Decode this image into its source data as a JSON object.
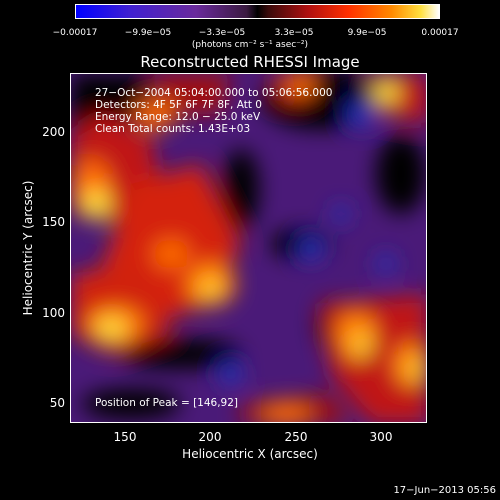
{
  "colorbar": {
    "ticks": [
      "−0.00017",
      "−9.9e−05",
      "−3.3e−05",
      "3.3e−05",
      "9.9e−05",
      "0.00017"
    ],
    "unit_label": "(photons cm⁻² s⁻¹ asec⁻²)"
  },
  "title": "Reconstructed RHESSI Image",
  "info": {
    "line1": "27−Oct−2004 05:04:00.000 to 05:06:56.000",
    "line2": "Detectors: 4F 5F 6F 7F 8F, Att 0",
    "line3": "Energy Range: 12.0 − 25.0 keV",
    "line4": "Clean     Total counts: 1.43E+03"
  },
  "peak_label": "Position of Peak = [146,92]",
  "axes": {
    "xlabel": "Heliocentric X (arcsec)",
    "ylabel": "Heliocentric Y (arcsec)",
    "xticks": [
      "150",
      "200",
      "250",
      "300"
    ],
    "yticks": [
      "200",
      "150",
      "100",
      "50"
    ]
  },
  "footer": "17−Jun−2013 05:56"
}
